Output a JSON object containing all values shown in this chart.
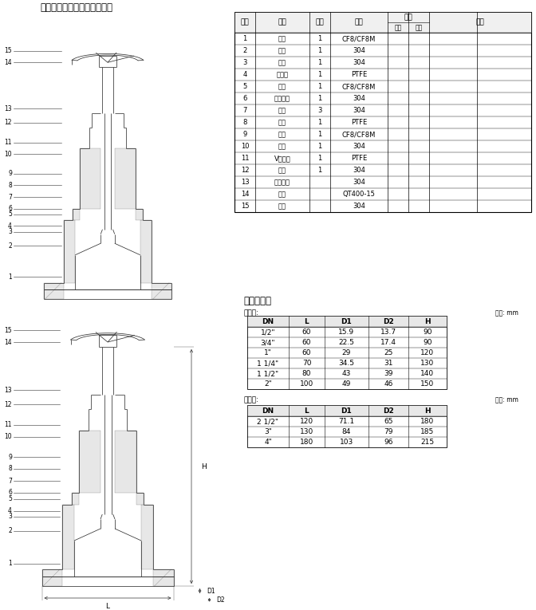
{
  "title": "主要零部件材质适用温度参数",
  "page_bg": "#ffffff",
  "components_table": {
    "headers": [
      "序号",
      "名称",
      "数量",
      "材料",
      "重量",
      "备注"
    ],
    "weight_sub": [
      "单件",
      "总计"
    ],
    "rows": [
      [
        "1",
        "阀体",
        "1",
        "CF8/CF8M",
        "",
        ""
      ],
      [
        "2",
        "螺母",
        "1",
        "304",
        "",
        ""
      ],
      [
        "3",
        "垫片",
        "1",
        "304",
        "",
        ""
      ],
      [
        "4",
        "密封圈",
        "1",
        "PTFE",
        "",
        ""
      ],
      [
        "5",
        "阀塞",
        "1",
        "CF8/CF8M",
        "",
        ""
      ],
      [
        "6",
        "并紧螺帽",
        "1",
        "304",
        "",
        ""
      ],
      [
        "7",
        "阀杆",
        "3",
        "304",
        "",
        ""
      ],
      [
        "8",
        "线条",
        "1",
        "PTFE",
        "",
        ""
      ],
      [
        "9",
        "阀盖",
        "1",
        "CF8/CF8M",
        "",
        ""
      ],
      [
        "10",
        "垫圈",
        "1",
        "304",
        "",
        ""
      ],
      [
        "11",
        "V型填料",
        "1",
        "PTFE",
        "",
        ""
      ],
      [
        "12",
        "压圈",
        "1",
        "304",
        "",
        ""
      ],
      [
        "13",
        "并紧螺帽",
        "",
        "304",
        "",
        ""
      ],
      [
        "14",
        "手轮",
        "",
        "QT400-15",
        "",
        ""
      ],
      [
        "15",
        "螺母",
        "",
        "304",
        "",
        ""
      ]
    ]
  },
  "struct_title": "结构尺寸表",
  "table2_label": "尺寸表:",
  "table2_unit": "单位: mm",
  "table2_headers": [
    "DN",
    "L",
    "D1",
    "D2",
    "H"
  ],
  "table2_rows": [
    [
      "1/2\"",
      "60",
      "15.9",
      "13.7",
      "90"
    ],
    [
      "3/4\"",
      "60",
      "22.5",
      "17.4",
      "90"
    ],
    [
      "1\"",
      "60",
      "29",
      "25",
      "120"
    ],
    [
      "1 1/4\"",
      "70",
      "34.5",
      "31",
      "130"
    ],
    [
      "1 1/2\"",
      "80",
      "43",
      "39",
      "140"
    ],
    [
      "2\"",
      "100",
      "49",
      "46",
      "150"
    ]
  ],
  "table3_label": "尺寸表:",
  "table3_unit": "单位: mm",
  "table3_headers": [
    "DN",
    "L",
    "D1",
    "D2",
    "H"
  ],
  "table3_rows": [
    [
      "2 1/2\"",
      "120",
      "71.1",
      "65",
      "180"
    ],
    [
      "3\"",
      "130",
      "84",
      "79",
      "185"
    ],
    [
      "4\"",
      "180",
      "103",
      "96",
      "215"
    ]
  ],
  "part_labels": [
    "15",
    "14",
    "13",
    "12",
    "11",
    "10",
    "9",
    "8",
    "7",
    "6",
    "5",
    "4",
    "3",
    "2",
    "1"
  ]
}
